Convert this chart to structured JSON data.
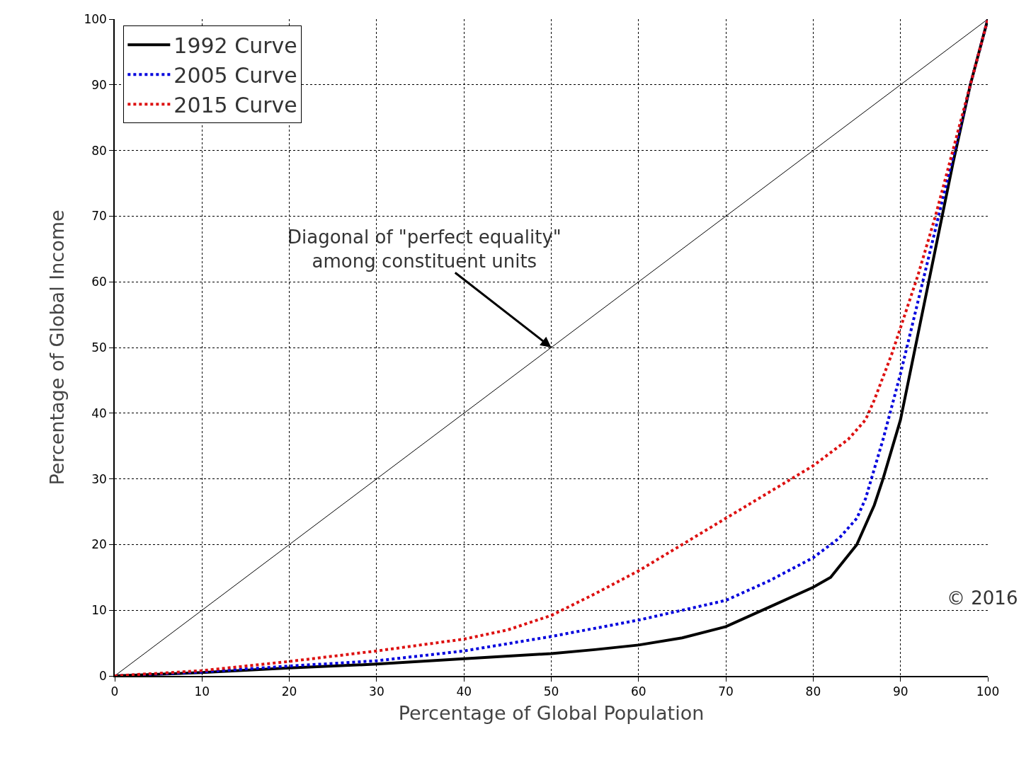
{
  "chart_data": {
    "type": "line",
    "xlabel": "Percentage of Global Population",
    "ylabel": "Percentage of Global Income",
    "xlim": [
      0,
      100
    ],
    "ylim": [
      0,
      100
    ],
    "xticks": [
      0,
      10,
      20,
      30,
      40,
      50,
      60,
      70,
      80,
      90,
      100
    ],
    "yticks": [
      0,
      10,
      20,
      30,
      40,
      50,
      60,
      70,
      80,
      90,
      100
    ],
    "grid": true,
    "legend": "top left",
    "marker": "none",
    "series": [
      {
        "x": [
          0,
          100
        ],
        "values": [
          0,
          100
        ],
        "color": "#000000",
        "line_style": "solid"
      },
      {
        "name": "1992 Curve",
        "color": "#000000",
        "line_style": "solid",
        "x": [
          0,
          10,
          20,
          30,
          40,
          50,
          55,
          60,
          65,
          70,
          75,
          80,
          82,
          85,
          87,
          88,
          90,
          92,
          94,
          96,
          98,
          100
        ],
        "values": [
          0,
          0.5,
          1.2,
          1.8,
          2.6,
          3.4,
          4,
          4.7,
          5.8,
          7.5,
          10.5,
          13.5,
          15,
          20,
          26,
          30,
          39,
          52,
          65,
          78,
          90,
          100
        ]
      },
      {
        "name": "2005 Curve",
        "color": "#0000dd",
        "line_style": "dotted",
        "x": [
          0,
          10,
          20,
          30,
          40,
          50,
          60,
          65,
          70,
          75,
          80,
          83,
          85,
          86,
          88,
          90,
          92,
          94,
          96,
          98,
          100
        ],
        "values": [
          0,
          0.6,
          1.5,
          2.3,
          3.8,
          6,
          8.5,
          10,
          11.5,
          14.5,
          18,
          21,
          24,
          27,
          36,
          46,
          57,
          68,
          79,
          90,
          100
        ]
      },
      {
        "name": "2015 Curve",
        "color": "#dd1111",
        "line_style": "dotted",
        "x": [
          0,
          10,
          20,
          30,
          40,
          45,
          50,
          55,
          60,
          65,
          70,
          75,
          80,
          84,
          86,
          87,
          89,
          90,
          92,
          94,
          96,
          98,
          100
        ],
        "values": [
          0,
          0.8,
          2.2,
          3.8,
          5.6,
          7,
          9.2,
          12.5,
          16,
          20,
          24,
          28,
          32,
          36,
          39,
          42,
          49,
          53,
          61,
          70,
          80,
          90,
          100
        ]
      }
    ],
    "annotations": [
      {
        "text": "Diagonal of \"perfect equality\"\namong constituent units",
        "x": 50,
        "y": 50
      },
      "© 2016"
    ]
  }
}
